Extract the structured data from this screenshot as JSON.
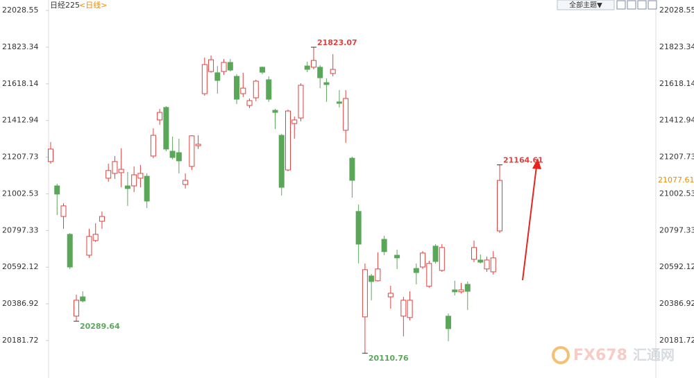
{
  "chart_data": {
    "type": "candlestick",
    "title": "日经225",
    "subtitle": "<日线>",
    "open": [
      21183,
      21047,
      20876,
      20776,
      20318,
      20426,
      20659,
      20741,
      20849,
      21090,
      21117,
      21121,
      21047,
      21047,
      21090,
      21101,
      21214,
      21416,
      21486,
      21241,
      21233,
      21055,
      21156,
      21272,
      21563,
      21687,
      21680,
      21687,
      21738,
      21660,
      21563,
      21497,
      21540,
      21711,
      21641,
      21470,
      21330,
      21136,
      21396,
      21427,
      21718,
      21711,
      21711,
      21625,
      21676,
      21517,
      21358,
      21202,
      20904,
      20314,
      20543,
      20516,
      20748,
      20426,
      20659,
      20318,
      20310,
      20585,
      20593,
      20485,
      20710,
      20574,
      20318,
      20465,
      20454,
      20496,
      20636,
      20632,
      20582,
      20566,
      20795
    ],
    "high": [
      21292,
      21059,
      20950,
      20783,
      20438,
      20457,
      20807,
      20838,
      20904,
      21171,
      21214,
      21257,
      21125,
      21156,
      21164,
      21117,
      21369,
      21478,
      21493,
      21323,
      21311,
      21117,
      21330,
      21330,
      21765,
      21777,
      21718,
      21757,
      21757,
      21672,
      21680,
      21536,
      21641,
      21715,
      21660,
      21478,
      21338,
      21474,
      21435,
      21621,
      21742,
      21823.07,
      21722,
      21649,
      21784,
      21583,
      21583,
      21210,
      20942,
      20613,
      20554,
      20675,
      20768,
      20488,
      20690,
      20426,
      20457,
      20613,
      20682,
      20628,
      20721,
      20721,
      20333,
      20516,
      20504,
      20512,
      20741,
      20663,
      20651,
      20682,
      21164.61
    ],
    "low": [
      21171,
      20884,
      20807,
      20582,
      20289.64,
      20395,
      20644,
      20733,
      20807,
      21070,
      21086,
      21039,
      20935,
      21012,
      21039,
      20923,
      21202,
      21389,
      21241,
      21195,
      21117,
      21032,
      21136,
      21253,
      21552,
      21680,
      21563,
      21668,
      21687,
      21505,
      21544,
      21482,
      21521,
      21672,
      21517,
      21365,
      20993,
      21129,
      21311,
      21408,
      21683,
      21699,
      21594,
      21517,
      21660,
      21486,
      21288,
      20981,
      20613,
      20110.76,
      20407,
      20512,
      20659,
      20360,
      20582,
      20205,
      20294,
      20496,
      20582,
      20477,
      20613,
      20566,
      20178,
      20434,
      20446,
      20353,
      20620,
      20613,
      20566,
      20551,
      20783
    ],
    "close": [
      21253,
      21001,
      20935,
      20593,
      20407,
      20403,
      20764,
      20776,
      20876,
      21133,
      21183,
      21140,
      21032,
      21109,
      21117,
      20962,
      21330,
      21458,
      21253,
      21206,
      21187,
      21078,
      21327,
      21280,
      21726,
      21753,
      21637,
      21738,
      21695,
      21532,
      21594,
      21524,
      21633,
      21683,
      21532,
      21458,
      21039,
      21466,
      21416,
      21610,
      21699,
      21749,
      21652,
      21614,
      21699,
      21509,
      21536,
      21078,
      20721,
      20578,
      20512,
      20582,
      20679,
      20446,
      20644,
      20407,
      20407,
      20562,
      20671,
      20613,
      20624,
      20702,
      20248,
      20454,
      20465,
      20457,
      20702,
      20620,
      20632,
      20644,
      21077.61
    ],
    "up_color": "#e0403c",
    "down_color": "#5aa75a",
    "ylim": [
      20100,
      22060
    ],
    "yticks": [
      22028.55,
      21823.34,
      21618.14,
      21412.94,
      21207.73,
      21002.53,
      20797.33,
      20592.12,
      20386.92,
      20181.72
    ],
    "grid": false,
    "annotations": [
      {
        "candle": 41,
        "field": "high"
      },
      {
        "candle": 4,
        "field": "low"
      },
      {
        "candle": 49,
        "field": "low"
      },
      {
        "candle": 70,
        "field": "high"
      }
    ],
    "last_price_label": true
  },
  "toolbar": {
    "theme_button": "全部主题▼"
  },
  "watermark": {
    "brand": "FX678",
    "name": "汇通网"
  }
}
